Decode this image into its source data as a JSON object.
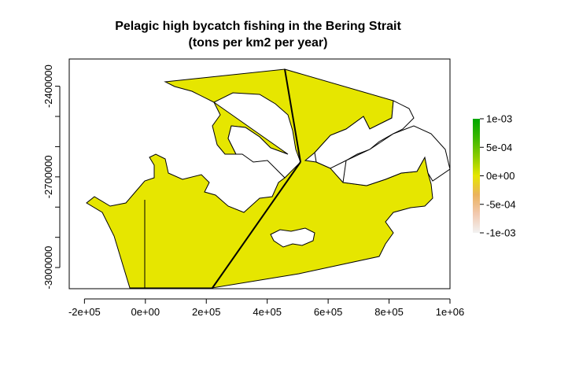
{
  "chart_data": {
    "type": "heatmap",
    "title": [
      "Pelagic high bycatch fishing in the Bering Strait",
      "(tons per km2 per year)"
    ],
    "xlabel": "",
    "ylabel": "",
    "xlim": [
      -250000,
      1000000
    ],
    "ylim": [
      -3070000,
      -2310000
    ],
    "x_ticks": [
      -200000,
      0,
      200000,
      400000,
      600000,
      800000,
      1000000
    ],
    "x_tick_labels": [
      "-2e+05",
      "0e+00",
      "2e+05",
      "4e+05",
      "6e+05",
      "8e+05",
      "1e+06"
    ],
    "y_ticks": [
      -2400000,
      -2700000,
      -3000000
    ],
    "y_tick_labels": [
      "-2400000",
      "-2700000",
      "-3000000"
    ],
    "y_minor_ticks": [
      -2500000,
      -2600000,
      -2800000,
      -2900000
    ],
    "fill_value": 0,
    "fill_color": "#E6E600",
    "legend": {
      "placement": "right",
      "range": [
        -0.001,
        0.001
      ],
      "ticks": [
        0.001,
        0.0005,
        0,
        -0.0005,
        -0.001
      ],
      "tick_labels": [
        "1e-03",
        "5e-04",
        "0e+00",
        "-5e-04",
        "-1e-03"
      ],
      "colors_top_to_bottom": [
        "#00A600",
        "#3CB800",
        "#8BCC00",
        "#E6E600",
        "#EBB25E",
        "#F2C9B0",
        "#F2F2F2"
      ]
    },
    "grid": false
  }
}
